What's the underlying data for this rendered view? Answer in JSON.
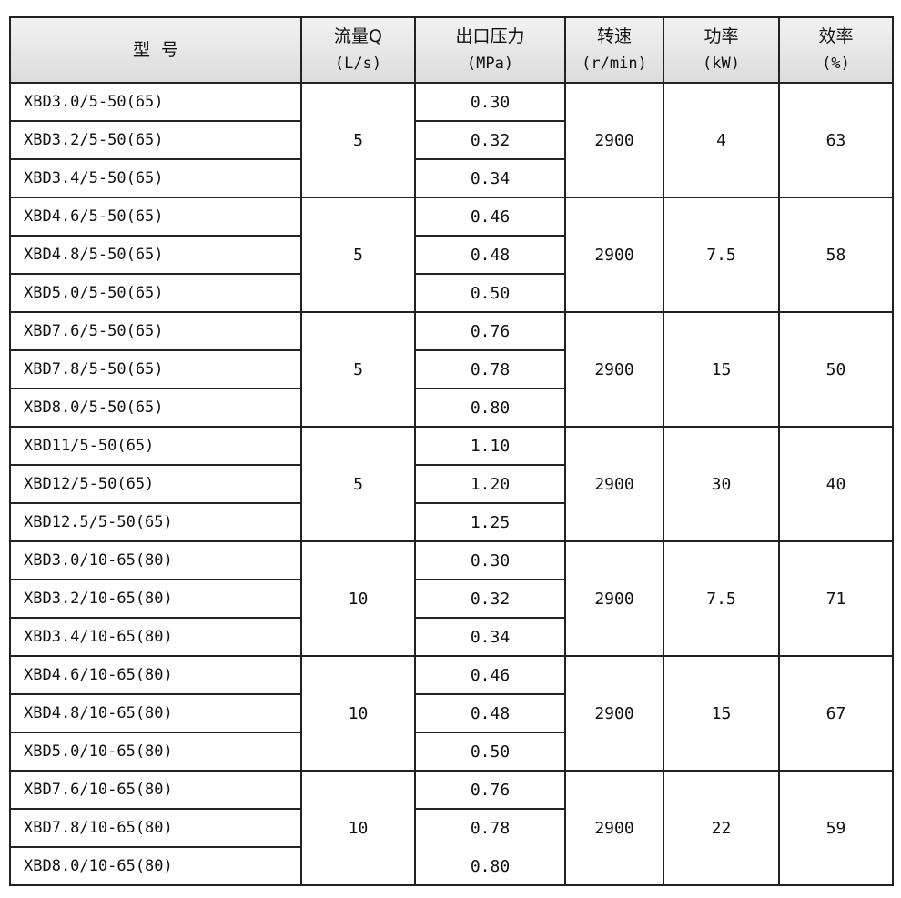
{
  "header": {
    "model": "型  号",
    "flow": "流量Q",
    "flow_unit": "(L/s)",
    "pressure": "出口压力",
    "pressure_unit": "(MPa)",
    "speed": "转速",
    "speed_unit": "(r/min)",
    "power": "功率",
    "power_unit": "(kW)",
    "efficiency": "效率",
    "efficiency_unit": "(%)"
  },
  "groups": [
    {
      "flow": "5",
      "speed": "2900",
      "power": "4",
      "efficiency": "63",
      "rows": [
        [
          "XBD3.0/5-50(65)",
          "0.30"
        ],
        [
          "XBD3.2/5-50(65)",
          "0.32"
        ],
        [
          "XBD3.4/5-50(65)",
          "0.34"
        ]
      ]
    },
    {
      "flow": "5",
      "speed": "2900",
      "power": "7.5",
      "efficiency": "58",
      "rows": [
        [
          "XBD4.6/5-50(65)",
          "0.46"
        ],
        [
          "XBD4.8/5-50(65)",
          "0.48"
        ],
        [
          "XBD5.0/5-50(65)",
          "0.50"
        ]
      ]
    },
    {
      "flow": "5",
      "speed": "2900",
      "power": "15",
      "efficiency": "50",
      "rows": [
        [
          "XBD7.6/5-50(65)",
          "0.76"
        ],
        [
          "XBD7.8/5-50(65)",
          "0.78"
        ],
        [
          "XBD8.0/5-50(65)",
          "0.80"
        ]
      ]
    },
    {
      "flow": "5",
      "speed": "2900",
      "power": "30",
      "efficiency": "40",
      "rows": [
        [
          "XBD11/5-50(65)",
          "1.10"
        ],
        [
          "XBD12/5-50(65)",
          "1.20"
        ],
        [
          "XBD12.5/5-50(65)",
          "1.25"
        ]
      ]
    },
    {
      "flow": "10",
      "speed": "2900",
      "power": "7.5",
      "efficiency": "71",
      "rows": [
        [
          "XBD3.0/10-65(80)",
          "0.30"
        ],
        [
          "XBD3.2/10-65(80)",
          "0.32"
        ],
        [
          "XBD3.4/10-65(80)",
          "0.34"
        ]
      ]
    },
    {
      "flow": "10",
      "speed": "2900",
      "power": "15",
      "efficiency": "67",
      "rows": [
        [
          "XBD4.6/10-65(80)",
          "0.46"
        ],
        [
          "XBD4.8/10-65(80)",
          "0.48"
        ],
        [
          "XBD5.0/10-65(80)",
          "0.50"
        ]
      ]
    },
    {
      "flow": "10",
      "speed": "2900",
      "power": "22",
      "efficiency": "59",
      "rows": [
        [
          "XBD7.6/10-65(80)",
          "0.76"
        ],
        [
          "XBD7.8/10-65(80)",
          "0.78"
        ],
        [
          "XBD8.0/10-65(80)",
          "0.80"
        ]
      ]
    }
  ]
}
